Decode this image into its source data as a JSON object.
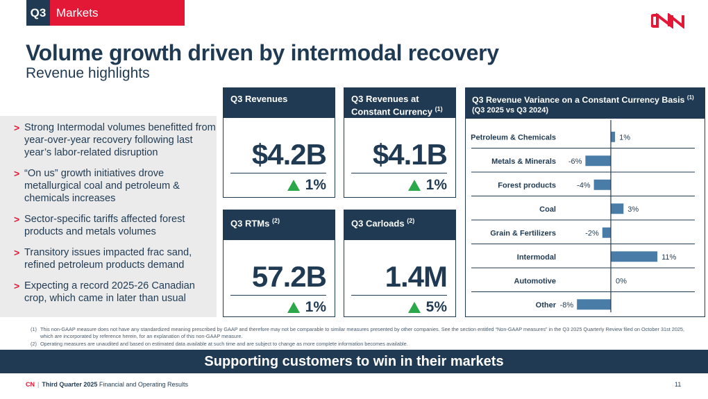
{
  "header": {
    "quarter_tag": "Q3",
    "section_label": "Markets",
    "logo_text": "CN"
  },
  "title": "Volume growth driven by intermodal recovery",
  "subtitle": "Revenue highlights",
  "bullets": [
    "Strong Intermodal volumes benefitted from year-over-year recovery following last year’s labor-related disruption",
    "“On us” growth initiatives drove metallurgical coal and petroleum & chemicals increases",
    "Sector-specific tariffs affected forest products and metals volumes",
    "Transitory issues impacted frac sand, refined petroleum products demand",
    "Expecting a record 2025-26 Canadian crop, which came in later than usual"
  ],
  "kpis": {
    "revenues": {
      "title": "Q3 Revenues",
      "note": "",
      "value": "$4.2B",
      "change": "1%"
    },
    "revenues_cc": {
      "title_line1": "Q3 Revenues at",
      "title_line2": "Constant Currency",
      "note": "(1)",
      "value": "$4.1B",
      "change": "1%"
    },
    "rtms": {
      "title": "Q3 RTMs",
      "note": "(2)",
      "value": "57.2B",
      "change": "1%"
    },
    "carloads": {
      "title": "Q3 Carloads",
      "note": "(2)",
      "value": "1.4M",
      "change": "5%"
    }
  },
  "variance_chart": {
    "title": "Q3 Revenue Variance on a Constant Currency Basis",
    "note": "(1)",
    "subtitle": "(Q3 2025 vs Q3 2024)"
  },
  "chart_data": {
    "type": "bar",
    "orientation": "horizontal",
    "categories": [
      "Petroleum & Chemicals",
      "Metals & Minerals",
      "Forest products",
      "Coal",
      "Grain & Fertilizers",
      "Intermodal",
      "Automotive",
      "Other"
    ],
    "values": [
      1,
      -6,
      -4,
      3,
      -2,
      11,
      0,
      -8
    ],
    "data_labels": [
      "1%",
      "-6%",
      "-4%",
      "3%",
      "-2%",
      "11%",
      "0%",
      "-8%"
    ],
    "bar_color": "#4a7ca8",
    "xlim": [
      -8,
      11
    ]
  },
  "footnotes": [
    {
      "num": "(1)",
      "text": "This non-GAAP measure does not have any standardized meaning prescribed by GAAP and therefore may not be comparable to similar measures presented by other companies. See the section entitled “Non-GAAP measures” in the Q3 2025 Quarterly Review filed on October 31st 2025, which are incorporated by reference herein, for an explanation of this non-GAAP measure."
    },
    {
      "num": "(2)",
      "text": "Operating measures are unaudited and based on estimated data available at such time and are subject to change as more complete information becomes available."
    }
  ],
  "banner": "Supporting customers to win in their markets",
  "footer": {
    "brand": "CN",
    "separator": "|",
    "period": "Third Quarter 2025",
    "doc_title": "Financial and Operating Results",
    "page_number": "11"
  },
  "colors": {
    "navy": "#1f3a52",
    "red": "#e31837",
    "green": "#2aa84a",
    "bar": "#4a7ca8",
    "panel": "#ebebeb"
  }
}
